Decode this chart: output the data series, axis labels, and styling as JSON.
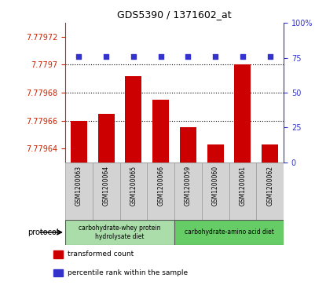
{
  "title": "GDS5390 / 1371602_at",
  "samples": [
    "GSM1200063",
    "GSM1200064",
    "GSM1200065",
    "GSM1200066",
    "GSM1200059",
    "GSM1200060",
    "GSM1200061",
    "GSM1200062"
  ],
  "red_values": [
    7.77966,
    7.779665,
    7.779692,
    7.779675,
    7.779655,
    7.779643,
    7.7797,
    7.779643
  ],
  "blue_values": [
    76,
    76,
    76,
    76,
    76,
    76,
    76,
    76
  ],
  "ylim_left": [
    7.77963,
    7.77973
  ],
  "ylim_right": [
    0,
    100
  ],
  "yticks_left": [
    7.77964,
    7.77966,
    7.77968,
    7.7797,
    7.77972
  ],
  "yticks_right": [
    0,
    25,
    50,
    75,
    100
  ],
  "ytick_labels_left": [
    "7.77964",
    "7.77966",
    "7.77968",
    "7.7797",
    "7.77972"
  ],
  "ytick_labels_right": [
    "0",
    "25",
    "50",
    "75",
    "100%"
  ],
  "dotted_lines": [
    7.7797,
    7.77968,
    7.77966
  ],
  "bar_color": "#cc0000",
  "dot_color": "#3333cc",
  "protocol_groups": [
    {
      "label": "carbohydrate-whey protein\nhydrolysate diet",
      "start": 0,
      "end": 4,
      "color": "#aaddaa"
    },
    {
      "label": "carbohydrate-amino acid diet",
      "start": 4,
      "end": 8,
      "color": "#66cc66"
    }
  ],
  "legend_items": [
    {
      "color": "#cc0000",
      "label": "transformed count"
    },
    {
      "color": "#3333cc",
      "label": "percentile rank within the sample"
    }
  ],
  "protocol_label": "protocol",
  "left_axis_color": "#cc2200",
  "right_axis_color": "#3333cc",
  "sample_box_color": "#d3d3d3",
  "sample_box_edge": "#999999"
}
